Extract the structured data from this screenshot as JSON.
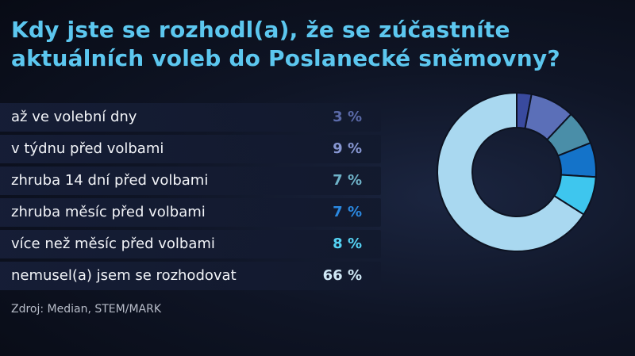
{
  "title": {
    "line1": "Kdy jste se rozhodl(a), že se zúčastníte",
    "line2": "aktuálních voleb do Poslanecké sněmovny?"
  },
  "source": "Zdroj: Median, STEM/MARK",
  "colors": {
    "title": "#5cc7ef",
    "segments": [
      "#394a9e",
      "#5b6fb8",
      "#4a8ea8",
      "#1473c9",
      "#3ec6ee",
      "#a9d8f0"
    ]
  },
  "rows": [
    {
      "label": "až ve volební dny",
      "value_text": "3 %",
      "color": "#5a6aa8"
    },
    {
      "label": "v týdnu před volbami",
      "value_text": "9 %",
      "color": "#8797d2"
    },
    {
      "label": "zhruba 14 dní před volbami",
      "value_text": "7 %",
      "color": "#6fb3c9"
    },
    {
      "label": "zhruba měsíc před volbami",
      "value_text": "7 %",
      "color": "#2a88e0"
    },
    {
      "label": "více než měsíc před volbami",
      "value_text": "8 %",
      "color": "#55d4f5"
    },
    {
      "label": "nemusel(a) jsem se rozhodovat",
      "value_text": "66 %",
      "color": "#cfe8f5"
    }
  ],
  "chart_data": {
    "type": "pie",
    "title": "Kdy jste se rozhodl(a), že se zúčastníte aktuálních voleb do Poslanecké sněmovny?",
    "categories": [
      "až ve volební dny",
      "v týdnu před volbami",
      "zhruba 14 dní před volbami",
      "zhruba měsíc před volbami",
      "více než měsíc před volbami",
      "nemusel(a) jsem se rozhodovat"
    ],
    "values": [
      3,
      9,
      7,
      7,
      8,
      66
    ],
    "unit": "%",
    "donut": true
  }
}
